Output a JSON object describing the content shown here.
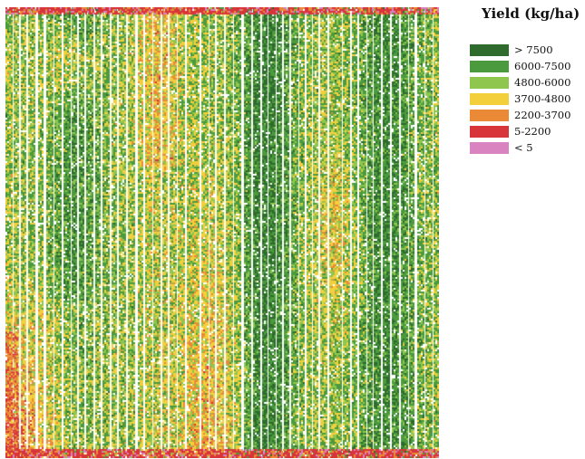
{
  "map": {
    "classes": [
      {
        "label": "> 7500",
        "color": "#2e6b2c"
      },
      {
        "label": "6000-7500",
        "color": "#4b9a3e"
      },
      {
        "label": "4800-6000",
        "color": "#8fc64e"
      },
      {
        "label": "3700-4800",
        "color": "#f4cf3c"
      },
      {
        "label": "2200-3700",
        "color": "#ea8a36"
      },
      {
        "label": "5-2200",
        "color": "#d7353a"
      },
      {
        "label": "< 5",
        "color": "#d984c0"
      }
    ]
  },
  "legend": {
    "title": "Yield (kg/ha)",
    "position": "top-right"
  }
}
